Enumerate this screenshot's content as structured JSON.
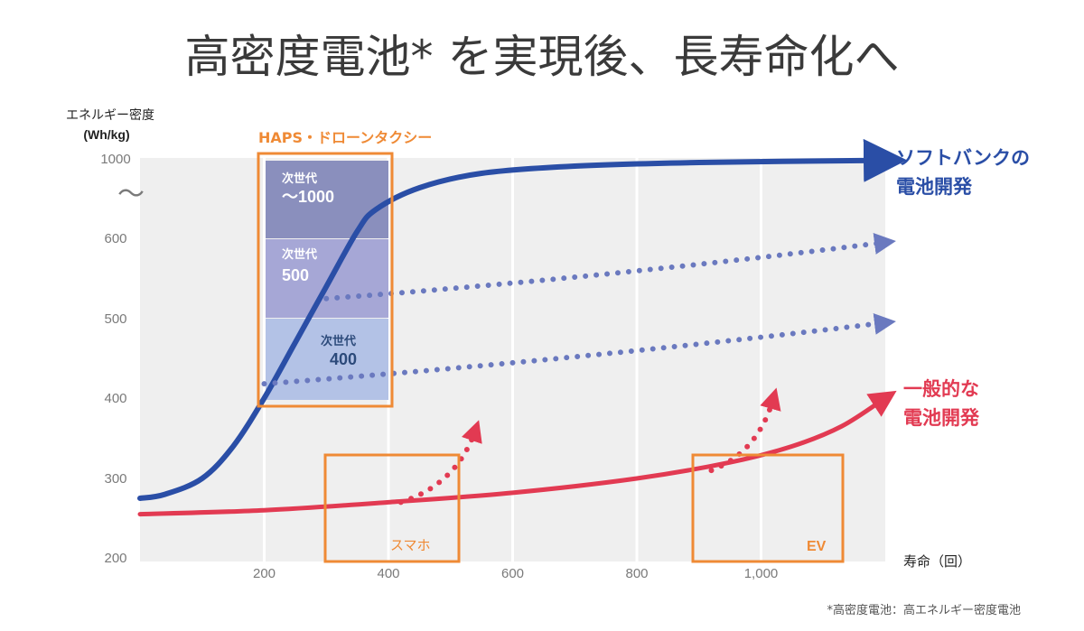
{
  "page_title": "高密度電池* を実現後、長寿命化へ",
  "footnote": "*高密度電池：高エネルギー密度電池",
  "colors": {
    "softbank_line": "#2a4ea6",
    "general_line": "#e23a52",
    "dotted_arrows": "#6a79bf",
    "highlight_box": "#ef8a35",
    "plot_background": "#efefef",
    "gen_1000": "#8a8fbd",
    "gen_500": "#a6a7d6",
    "gen_400": "#b3c2e6"
  },
  "chart_data": {
    "type": "line",
    "title": "高密度電池* を実現後、長寿命化へ",
    "ylabel": "エネルギー密度",
    "ylabel_unit": "(Wh/kg)",
    "xlabel": "寿命（回）",
    "y_ticks": [
      "200",
      "300",
      "400",
      "500",
      "600",
      "1000"
    ],
    "y_axis_break": "〜",
    "x_ticks": [
      "200",
      "400",
      "600",
      "800",
      "1,000"
    ],
    "x_tick_values": [
      200,
      400,
      600,
      800,
      1000
    ],
    "xlim": [
      0,
      1200
    ],
    "grid": true,
    "series": [
      {
        "name": "ソフトバンクの電池開発",
        "label_lines": [
          "ソフトバンクの",
          "電池開発"
        ],
        "style": "solid-arrow",
        "x": [
          0,
          40,
          100,
          150,
          200,
          250,
          300,
          350,
          380,
          450,
          550,
          700,
          900,
          1200
        ],
        "y_level": [
          275,
          280,
          300,
          340,
          400,
          470,
          540,
          610,
          640,
          670,
          690,
          700,
          705,
          708
        ],
        "y_level_note": "values above 600 are on a compressed scale that tops out at 1000"
      },
      {
        "name": "一般的な電池開発",
        "label_lines": [
          "一般的な",
          "電池開発"
        ],
        "style": "solid-arrow",
        "x": [
          0,
          200,
          400,
          600,
          800,
          950,
          1050,
          1130,
          1200
        ],
        "y": [
          255,
          260,
          270,
          282,
          300,
          320,
          340,
          365,
          400
        ]
      }
    ],
    "projections": [
      {
        "from": [
          300,
          525
        ],
        "to": [
          1200,
          595
        ],
        "style": "dotted-arrow"
      },
      {
        "from": [
          200,
          418
        ],
        "to": [
          1200,
          495
        ],
        "style": "dotted-arrow"
      },
      {
        "from": [
          420,
          270
        ],
        "to": [
          540,
          360
        ],
        "style": "dotted-arrow",
        "color": "general"
      },
      {
        "from": [
          920,
          310
        ],
        "to": [
          1020,
          400
        ],
        "style": "dotted-arrow",
        "color": "general"
      }
    ],
    "targets": [
      {
        "line1": "次世代",
        "line2": "〜1000"
      },
      {
        "line1": "次世代",
        "line2": "500"
      },
      {
        "line1": "次世代",
        "line2": "400"
      }
    ],
    "highlight_boxes": [
      {
        "label": "HAPS・ドローンタクシー",
        "x_range": [
          190,
          410
        ],
        "y_range": [
          390,
          1000
        ]
      },
      {
        "label": "スマホ",
        "x_range": [
          300,
          520
        ],
        "y_range": [
          200,
          335
        ]
      },
      {
        "label": "EV",
        "x_range": [
          880,
          1140
        ],
        "y_range": [
          200,
          335
        ]
      }
    ]
  }
}
